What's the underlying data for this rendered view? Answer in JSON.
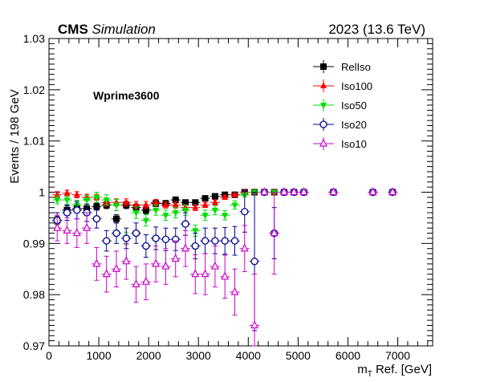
{
  "header": {
    "experiment": "CMS",
    "status": "Simulation",
    "run_info": "2023 (13.6 TeV)"
  },
  "chart_data": {
    "type": "scatter",
    "title": "",
    "annotation": "Wprime3600",
    "xlabel": "m_T Ref. [GeV]",
    "xlabel_main": "m",
    "xlabel_sub": "T",
    "xlabel_rest": " Ref. [GeV]",
    "ylabel": "Events / 198 GeV",
    "xlim": [
      0,
      7700
    ],
    "ylim": [
      0.97,
      1.03
    ],
    "x_ticks": [
      0,
      1000,
      2000,
      3000,
      4000,
      5000,
      6000,
      7000
    ],
    "y_ticks": [
      0.97,
      0.98,
      0.99,
      1.0,
      1.01,
      1.02,
      1.03
    ],
    "y_tick_labels": [
      "0.97",
      "0.98",
      "0.99",
      "1",
      "1.01",
      "1.02",
      "1.03"
    ],
    "bin_width": 198,
    "legend_position": "top-right",
    "grid": false,
    "series": [
      {
        "name": "RelIso",
        "color": "#000000",
        "marker": "filled-square",
        "x": [
          165,
          363,
          561,
          759,
          957,
          1155,
          1353,
          1551,
          1749,
          1947,
          2145,
          2343,
          2541,
          2739,
          2937,
          3135,
          3333,
          3531,
          3729,
          3927,
          4125,
          4323,
          4521,
          4719,
          4917,
          5115,
          5709,
          6501,
          6897
        ],
        "y": [
          0.9945,
          0.9965,
          0.9968,
          0.9968,
          0.9972,
          0.9975,
          0.9948,
          0.9975,
          0.997,
          0.9965,
          0.9978,
          0.9978,
          0.9985,
          0.998,
          0.998,
          0.9988,
          0.9992,
          0.9995,
          0.9995,
          1.0,
          1.0,
          1.0,
          1.0,
          1.0,
          1.0,
          1.0,
          1.0,
          1.0,
          1.0
        ],
        "err": [
          0.0008,
          0.0008,
          0.0008,
          0.0008,
          0.0007,
          0.0007,
          0.0008,
          0.0007,
          0.0007,
          0.0007,
          0.0006,
          0.0006,
          0.0006,
          0.0005,
          0.0005,
          0.0004,
          0.0004,
          0.0003,
          0.0003,
          0.0001,
          0.0001,
          0.0001,
          0.0001,
          0.0001,
          0.0001,
          0.0001,
          0.0001,
          0.0001,
          0.0001
        ]
      },
      {
        "name": "Iso100",
        "color": "#ff0000",
        "marker": "filled-triangle-up",
        "x": [
          165,
          363,
          561,
          759,
          957,
          1155,
          1353,
          1551,
          1749,
          1947,
          2145,
          2343,
          2541,
          2739,
          2937,
          3135,
          3333,
          3531,
          3729,
          3927,
          4125,
          4323,
          4521,
          4719,
          4917,
          5115,
          5709,
          6501,
          6897
        ],
        "y": [
          0.9995,
          0.9998,
          0.9995,
          0.999,
          0.999,
          0.998,
          0.998,
          0.998,
          0.9975,
          0.9975,
          0.998,
          0.9975,
          0.9975,
          0.997,
          0.997,
          0.9975,
          0.998,
          0.999,
          0.9995,
          1.0,
          1.0,
          1.0,
          1.0,
          1.0,
          1.0,
          1.0,
          1.0,
          1.0,
          1.0
        ],
        "err": [
          0.0006,
          0.0006,
          0.0006,
          0.0006,
          0.0006,
          0.0007,
          0.0007,
          0.0007,
          0.0007,
          0.0007,
          0.0006,
          0.0006,
          0.0006,
          0.0006,
          0.0006,
          0.0005,
          0.0005,
          0.0004,
          0.0003,
          0.0001,
          0.0001,
          0.0001,
          0.0001,
          0.0001,
          0.0001,
          0.0001,
          0.0001,
          0.0001,
          0.0001
        ]
      },
      {
        "name": "Iso50",
        "color": "#00dd00",
        "marker": "filled-triangle-down",
        "x": [
          165,
          363,
          561,
          759,
          957,
          1155,
          1353,
          1551,
          1749,
          1947,
          2145,
          2343,
          2541,
          2739,
          2937,
          3135,
          3333,
          3531,
          3729,
          3927,
          4125,
          4323,
          4521,
          4719,
          4917,
          5115,
          5709,
          6501,
          6897
        ],
        "y": [
          0.9985,
          0.9985,
          0.9975,
          0.9985,
          0.999,
          0.9985,
          0.9975,
          0.991,
          0.996,
          0.9945,
          0.9965,
          0.9955,
          0.996,
          0.9965,
          0.9925,
          0.9955,
          0.9965,
          0.9955,
          0.9975,
          0.9995,
          1.0,
          1.0,
          1.0,
          1.0,
          1.0,
          1.0,
          1.0,
          1.0,
          1.0
        ],
        "err": [
          0.0008,
          0.0008,
          0.0009,
          0.0009,
          0.001,
          0.001,
          0.0011,
          0.0012,
          0.0011,
          0.0011,
          0.001,
          0.001,
          0.001,
          0.001,
          0.0011,
          0.001,
          0.0009,
          0.0009,
          0.0008,
          0.0004,
          0.0001,
          0.0001,
          0.0001,
          0.0001,
          0.0001,
          0.0001,
          0.0001,
          0.0001,
          0.0001
        ]
      },
      {
        "name": "Iso20",
        "color": "#00008b",
        "marker": "open-circle",
        "x": [
          165,
          363,
          561,
          759,
          957,
          1155,
          1353,
          1551,
          1749,
          1947,
          2145,
          2343,
          2541,
          2739,
          2937,
          3135,
          3333,
          3531,
          3729,
          3927,
          4125,
          4323,
          4521,
          4719,
          4917,
          5115,
          5709,
          6501,
          6897
        ],
        "y": [
          0.9945,
          0.996,
          0.9965,
          0.996,
          0.9948,
          0.9905,
          0.992,
          0.991,
          0.992,
          0.9895,
          0.991,
          0.9908,
          0.9908,
          0.9938,
          0.9895,
          0.9905,
          0.9905,
          0.9905,
          0.9905,
          0.9962,
          0.9865,
          1.0,
          0.992,
          1.0,
          1.0,
          1.0,
          1.0,
          1.0,
          1.0
        ],
        "err": [
          0.0015,
          0.0015,
          0.0017,
          0.0017,
          0.0018,
          0.002,
          0.002,
          0.002,
          0.002,
          0.0022,
          0.0022,
          0.0022,
          0.0022,
          0.0022,
          0.0025,
          0.0025,
          0.0025,
          0.0026,
          0.0028,
          0.004,
          0.0135,
          0.0001,
          0.005,
          0.0001,
          0.0001,
          0.0001,
          0.0001,
          0.0001,
          0.0001
        ]
      },
      {
        "name": "Iso10",
        "color": "#cc00cc",
        "marker": "open-triangle-up",
        "x": [
          165,
          363,
          561,
          759,
          957,
          1155,
          1353,
          1551,
          1749,
          1947,
          2145,
          2343,
          2541,
          2739,
          2937,
          3135,
          3333,
          3531,
          3729,
          3927,
          4125,
          4323,
          4521,
          4719,
          4917,
          5115,
          5709,
          6501,
          6897
        ],
        "y": [
          0.993,
          0.9925,
          0.992,
          0.993,
          0.986,
          0.984,
          0.985,
          0.9865,
          0.982,
          0.9825,
          0.986,
          0.9855,
          0.987,
          0.989,
          0.984,
          0.984,
          0.9855,
          0.9835,
          0.9805,
          0.989,
          0.974,
          1.0,
          0.992,
          1.0,
          1.0,
          1.0,
          1.0,
          1.0,
          1.0
        ],
        "err": [
          0.0025,
          0.0025,
          0.0028,
          0.003,
          0.0032,
          0.0035,
          0.0035,
          0.0035,
          0.0035,
          0.0035,
          0.0035,
          0.0035,
          0.0035,
          0.0035,
          0.0038,
          0.004,
          0.004,
          0.0042,
          0.0045,
          0.0045,
          0.01,
          0.0001,
          0.008,
          0.0001,
          0.0001,
          0.0001,
          0.0001,
          0.0001,
          0.0001
        ]
      }
    ]
  }
}
